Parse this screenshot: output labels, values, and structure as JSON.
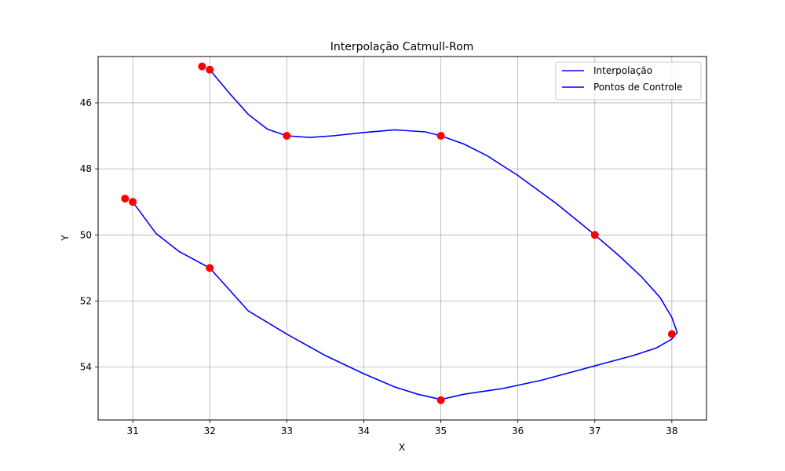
{
  "chart_data": {
    "type": "line",
    "title": "Interpolação Catmull-Rom",
    "xlabel": "X",
    "ylabel": "Y",
    "xlim": [
      30.55,
      38.45
    ],
    "ylim": [
      55.6,
      44.6
    ],
    "y_inverted": true,
    "grid": true,
    "legend_placement": "top-right",
    "x_ticks": [
      31,
      32,
      33,
      34,
      35,
      36,
      37,
      38
    ],
    "y_ticks": [
      46,
      48,
      50,
      52,
      54
    ],
    "series": [
      {
        "name": "Interpolação",
        "color": "#0000ff",
        "x": [
          32.0,
          32.25,
          32.5,
          32.75,
          33.0,
          33.3,
          33.6,
          34.0,
          34.4,
          34.8,
          35.0,
          35.3,
          35.6,
          36.0,
          36.5,
          37.0,
          37.3,
          37.6,
          37.85,
          38.0,
          38.07,
          38.0,
          37.8,
          37.5,
          37.1,
          36.7,
          36.3,
          35.8,
          35.3,
          35.0,
          34.7,
          34.4,
          34.0,
          33.5,
          33.0,
          32.5,
          32.0,
          31.6,
          31.3,
          31.0
        ],
        "y": [
          45.0,
          45.7,
          46.35,
          46.8,
          47.0,
          47.05,
          47.0,
          46.9,
          46.82,
          46.88,
          47.0,
          47.25,
          47.6,
          48.2,
          49.05,
          50.0,
          50.6,
          51.25,
          51.9,
          52.5,
          52.95,
          53.15,
          53.42,
          53.65,
          53.9,
          54.15,
          54.4,
          54.65,
          54.82,
          54.98,
          54.82,
          54.6,
          54.2,
          53.65,
          53.0,
          52.3,
          51.0,
          50.5,
          49.95,
          49.0
        ]
      },
      {
        "name": "Pontos de Controle",
        "color": "#ff0000",
        "marker": "o",
        "x": [
          31.9,
          32,
          33,
          35,
          37,
          38,
          35,
          32,
          31,
          30.9
        ],
        "y": [
          44.9,
          45,
          47,
          47,
          50,
          53,
          55,
          51,
          49,
          48.9
        ]
      }
    ],
    "legend_entries": [
      "Interpolação",
      "Pontos de Controle"
    ],
    "legend_line_color": "#0000ff"
  }
}
